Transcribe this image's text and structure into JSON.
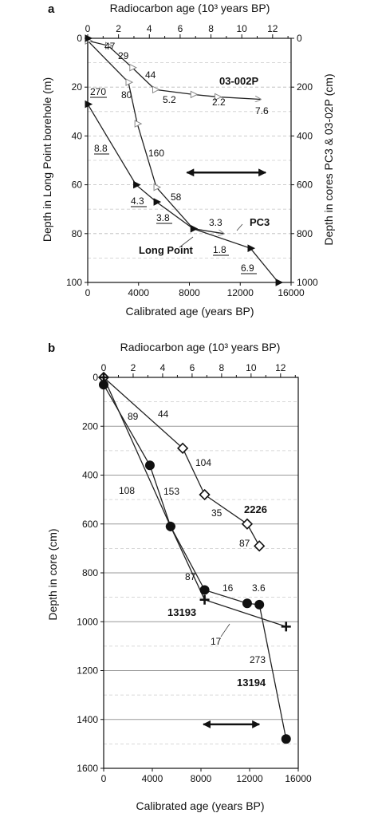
{
  "chart_data": [
    {
      "type": "line",
      "panel_label": "a",
      "top_xlabel": "Radiocarbon age (10³ years BP)",
      "top_xticks": [
        "0",
        "2",
        "4",
        "6",
        "8",
        "10",
        "12"
      ],
      "xlabel": "Calibrated age (years BP)",
      "xlim": [
        0,
        16000
      ],
      "xticks": [
        "0",
        "4000",
        "8000",
        "12000",
        "16000"
      ],
      "ylabel": "Depth in Long Point borehole (m)",
      "ylim": [
        0,
        100
      ],
      "yticks": [
        "0",
        "20",
        "40",
        "60",
        "80",
        "100"
      ],
      "right_ylabel": "Depth in cores PC3 & 03-02P (cm)",
      "right_yticks": [
        "0",
        "200",
        "400",
        "600",
        "800",
        "1000"
      ],
      "grid": "dashed horizontal",
      "series": [
        {
          "name": "03-002P",
          "marker": "open-triangle",
          "points": [
            [
              0,
              1
            ],
            [
              1600,
              3
            ],
            [
              3500,
              12
            ],
            [
              5300,
              21
            ],
            [
              8300,
              23
            ],
            [
              10200,
              24
            ],
            [
              13600,
              25
            ]
          ]
        },
        {
          "name": "PC3",
          "marker": "open-triangle",
          "points": [
            [
              0,
              1
            ],
            [
              3200,
              18
            ],
            [
              3900,
              35
            ],
            [
              5400,
              61
            ],
            [
              8300,
              78
            ],
            [
              10700,
              80
            ]
          ]
        },
        {
          "name": "Long Point",
          "marker": "filled-triangle",
          "points": [
            [
              0,
              0
            ],
            [
              0,
              27
            ],
            [
              3800,
              60
            ],
            [
              5400,
              67
            ],
            [
              8300,
              78
            ],
            [
              12800,
              86
            ],
            [
              15000,
              100
            ]
          ]
        }
      ],
      "annotations": [
        {
          "text": "47",
          "underline": false
        },
        {
          "text": "29",
          "underline": false
        },
        {
          "text": "44",
          "underline": false
        },
        {
          "text": "5.2",
          "underline": false
        },
        {
          "text": "2.2",
          "underline": false
        },
        {
          "text": "7.6",
          "underline": false
        },
        {
          "text": "270",
          "underline": true
        },
        {
          "text": "80",
          "underline": false
        },
        {
          "text": "8.8",
          "underline": true
        },
        {
          "text": "160",
          "underline": false
        },
        {
          "text": "58",
          "underline": false
        },
        {
          "text": "4.3",
          "underline": true
        },
        {
          "text": "3.8",
          "underline": true
        },
        {
          "text": "3.3",
          "underline": false
        },
        {
          "text": "1.8",
          "underline": true
        },
        {
          "text": "6.9",
          "underline": true
        }
      ],
      "series_labels": [
        "03-002P",
        "PC3",
        "Long Point"
      ],
      "double_arrow": {
        "x_from": 7800,
        "x_to": 14000,
        "y": 55
      }
    },
    {
      "type": "line",
      "panel_label": "b",
      "top_xlabel": "Radiocarbon age (10³ years BP)",
      "top_xticks": [
        "0",
        "2",
        "4",
        "6",
        "8",
        "10",
        "12"
      ],
      "xlabel": "Calibrated age (years BP)",
      "xlim": [
        0,
        16000
      ],
      "xticks": [
        "0",
        "4000",
        "8000",
        "12000",
        "16000"
      ],
      "ylabel": "Depth in core (cm)",
      "ylim": [
        0,
        1600
      ],
      "yticks": [
        "0",
        "200",
        "400",
        "600",
        "800",
        "1000",
        "1200",
        "1400",
        "1600"
      ],
      "grid": "solid at labeled ticks, dashed between",
      "series": [
        {
          "name": "2226",
          "marker": "open-diamond",
          "points": [
            [
              0,
              0
            ],
            [
              6500,
              290
            ],
            [
              8300,
              480
            ],
            [
              11800,
              600
            ],
            [
              12800,
              690
            ]
          ]
        },
        {
          "name": "13193",
          "marker": "plus",
          "points": [
            [
              0,
              0
            ],
            [
              5500,
              610
            ],
            [
              8300,
              910
            ],
            [
              15000,
              1020
            ]
          ]
        },
        {
          "name": "13194",
          "marker": "filled-circle",
          "points": [
            [
              0,
              30
            ],
            [
              3800,
              360
            ],
            [
              5500,
              610
            ],
            [
              8300,
              870
            ],
            [
              11800,
              925
            ],
            [
              12800,
              930
            ],
            [
              15000,
              1480
            ]
          ]
        }
      ],
      "annotations": [
        "44",
        "89",
        "104",
        "108",
        "153",
        "35",
        "87",
        "87",
        "16",
        "3.6",
        "17",
        "273"
      ],
      "series_labels": [
        "2226",
        "13193",
        "13194"
      ],
      "double_arrow": {
        "x_from": 8200,
        "x_to": 12800,
        "y": 1420
      }
    }
  ]
}
